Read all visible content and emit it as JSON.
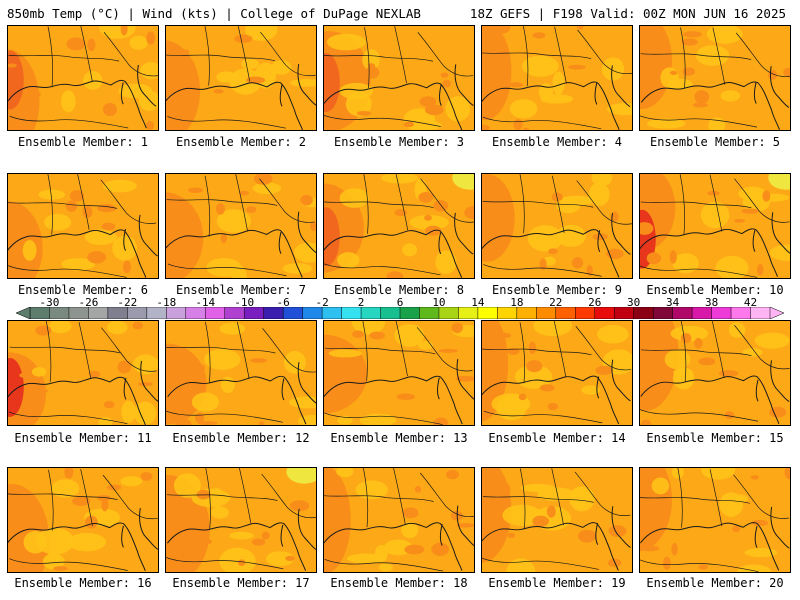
{
  "header": {
    "left": "850mb Temp (°C) | Wind (kts) | College of DuPage NEXLAB",
    "right": "18Z GEFS | F198 Valid: 00Z MON JUN 16 2025"
  },
  "colorbar": {
    "labels": [
      "-30",
      "-26",
      "-22",
      "-18",
      "-14",
      "-10",
      "-6",
      "-2",
      "2",
      "6",
      "10",
      "14",
      "18",
      "22",
      "26",
      "30",
      "34",
      "38",
      "42"
    ],
    "colors": [
      "#5d7d6d",
      "#7a8a80",
      "#8e9590",
      "#a3a6a4",
      "#7f7f8f",
      "#9a9aac",
      "#b3b3c8",
      "#c9a0dc",
      "#d67fe6",
      "#e060e8",
      "#b040d0",
      "#7a1fbf",
      "#3a1faf",
      "#2050d8",
      "#1f88e8",
      "#2ec0f0",
      "#36e2f0",
      "#27d6c0",
      "#18c090",
      "#1aa24a",
      "#5fb81c",
      "#a8d415",
      "#e6f014",
      "#ffff00",
      "#ffd400",
      "#ffb000",
      "#ff8c00",
      "#ff6000",
      "#ff3a00",
      "#e80c0c",
      "#c00010",
      "#8c0014",
      "#800838",
      "#b00868",
      "#d818a8",
      "#ee3ad8",
      "#ff78ec",
      "#ffb4f4"
    ],
    "stroke": "#000000"
  },
  "panel_colors": {
    "base": "#fda816",
    "light": "#ffc217",
    "yellow": "#f0e640",
    "warm": "#f98d1a",
    "hot": "#f2671e",
    "red": "#e8361c",
    "line": "#1a1a1a"
  },
  "members": [
    {
      "caption": "Ensemble Member: 1"
    },
    {
      "caption": "Ensemble Member: 2"
    },
    {
      "caption": "Ensemble Member: 3"
    },
    {
      "caption": "Ensemble Member: 4"
    },
    {
      "caption": "Ensemble Member: 5"
    },
    {
      "caption": "Ensemble Member: 6"
    },
    {
      "caption": "Ensemble Member: 7"
    },
    {
      "caption": "Ensemble Member: 8"
    },
    {
      "caption": "Ensemble Member: 9"
    },
    {
      "caption": "Ensemble Member: 10"
    },
    {
      "caption": "Ensemble Member: 11"
    },
    {
      "caption": "Ensemble Member: 12"
    },
    {
      "caption": "Ensemble Member: 13"
    },
    {
      "caption": "Ensemble Member: 14"
    },
    {
      "caption": "Ensemble Member: 15"
    },
    {
      "caption": "Ensemble Member: 16"
    },
    {
      "caption": "Ensemble Member: 17"
    },
    {
      "caption": "Ensemble Member: 18"
    },
    {
      "caption": "Ensemble Member: 19"
    },
    {
      "caption": "Ensemble Member: 20"
    }
  ]
}
